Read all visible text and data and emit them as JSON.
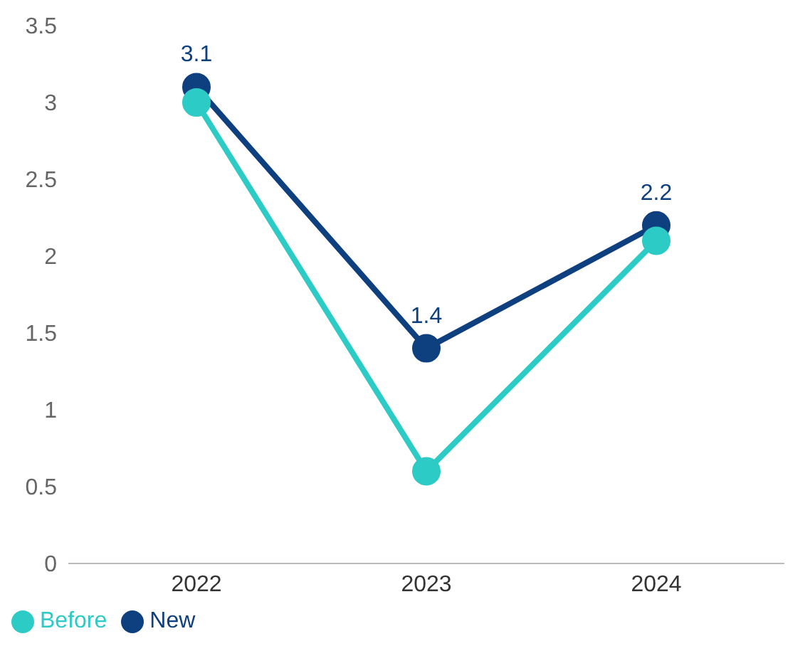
{
  "chart_data": {
    "type": "line",
    "categories": [
      "2022",
      "2023",
      "2024"
    ],
    "series": [
      {
        "name": "New",
        "color": "#0e3f7e",
        "values": [
          3.1,
          1.4,
          2.2
        ],
        "value_labels": [
          "3.1",
          "1.4",
          "2.2"
        ]
      },
      {
        "name": "Before",
        "color": "#2ccbc6",
        "values": [
          3.0,
          0.6,
          2.1
        ]
      }
    ],
    "ylim": [
      0,
      3.5
    ],
    "yticks": [
      0,
      0.5,
      1,
      1.5,
      2,
      2.5,
      3,
      3.5
    ],
    "grid": false,
    "legend": "bottom left",
    "marker": "circle",
    "line_style": "solid"
  }
}
